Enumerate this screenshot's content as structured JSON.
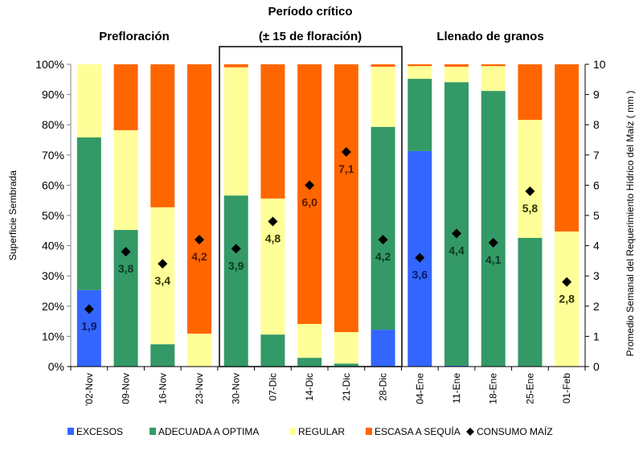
{
  "chart_data": {
    "type": "bar",
    "stacked": true,
    "title": "",
    "phases": [
      {
        "label": "Prefloración",
        "categories": [
          "02-Nov",
          "09-Nov",
          "16-Nov",
          "23-Nov"
        ]
      },
      {
        "label": "Período crítico",
        "sublabel": "(± 15 de floración)",
        "categories": [
          "30-Nov",
          "07-Dic",
          "14-Dic",
          "21-Dic",
          "28-Dic"
        ],
        "boxed": true
      },
      {
        "label": "Llenado de granos",
        "categories": [
          "04-Ene",
          "11-Ene",
          "18-Ene",
          "25-Ene",
          "01-Feb"
        ]
      }
    ],
    "categories": [
      "'02-Nov",
      "09-Nov",
      "16-Nov",
      "23-Nov",
      "30-Nov",
      "07-Dic",
      "14-Dic",
      "21-Dic",
      "28-Dic",
      "04-Ene",
      "11-Ene",
      "18-Ene",
      "25-Ene",
      "01-Feb"
    ],
    "series": [
      {
        "name": "EXCESOS",
        "color": "#3366ff",
        "values": [
          25.3,
          0,
          0,
          0,
          0,
          0,
          0,
          0,
          12.2,
          71.3,
          0.3,
          0,
          0,
          0
        ]
      },
      {
        "name": "ADECUADA A OPTIMA",
        "color": "#339966",
        "values": [
          50.5,
          45.2,
          7.4,
          0,
          56.6,
          10.6,
          2.9,
          1.0,
          67.1,
          23.9,
          93.8,
          91.2,
          42.6,
          0
        ]
      },
      {
        "name": "REGULAR",
        "color": "#ffff99",
        "values": [
          24.2,
          33.0,
          45.3,
          10.9,
          42.4,
          45.0,
          11.2,
          10.4,
          19.9,
          4.2,
          5.1,
          8.2,
          39.0,
          44.7
        ]
      },
      {
        "name": "ESCASA A SEQUÍA",
        "color": "#ff6600",
        "values": [
          0,
          21.8,
          47.3,
          89.1,
          1.0,
          44.4,
          85.9,
          88.6,
          0.8,
          0.6,
          0.8,
          0.6,
          18.4,
          55.3
        ]
      }
    ],
    "line_series": {
      "name": "CONSUMO MAÍZ",
      "axis": "right",
      "marker": "diamond",
      "color": "#000000",
      "values": [
        1.9,
        3.8,
        3.4,
        4.2,
        3.9,
        4.8,
        6.0,
        7.1,
        4.2,
        3.6,
        4.4,
        4.1,
        5.8,
        2.8
      ],
      "labels": [
        "1,9",
        "3,8",
        "3,4",
        "4,2",
        "3,9",
        "4,8",
        "6,0",
        "7,1",
        "4,2",
        "3,6",
        "4,4",
        "4,1",
        "5,8",
        "2,8"
      ],
      "label_colors": [
        "#0a1a60",
        "#0b3a1f",
        "#333300",
        "#5a1a00",
        "#0b3a1f",
        "#333300",
        "#5a1a00",
        "#5a1a00",
        "#0b3a1f",
        "#0a1a60",
        "#0b3a1f",
        "#0b3a1f",
        "#333300",
        "#333300"
      ]
    },
    "ylabel": "Superficie Sembrada",
    "ylim": [
      0,
      100
    ],
    "yticks": [
      "0%",
      "10%",
      "20%",
      "30%",
      "40%",
      "50%",
      "60%",
      "70%",
      "80%",
      "90%",
      "100%"
    ],
    "y2label": "Promedio Semanal del Requerimiento Hídrico del Maíz ( mm )",
    "y2lim": [
      0,
      10
    ],
    "y2ticks": [
      "0",
      "1",
      "2",
      "3",
      "4",
      "5",
      "6",
      "7",
      "8",
      "9",
      "10"
    ],
    "xlabel": "",
    "grid": false,
    "legend_position": "bottom",
    "legend": [
      "EXCESOS",
      "ADECUADA A OPTIMA",
      "REGULAR",
      "ESCASA A SEQUÍA",
      "CONSUMO MAÍZ"
    ]
  }
}
